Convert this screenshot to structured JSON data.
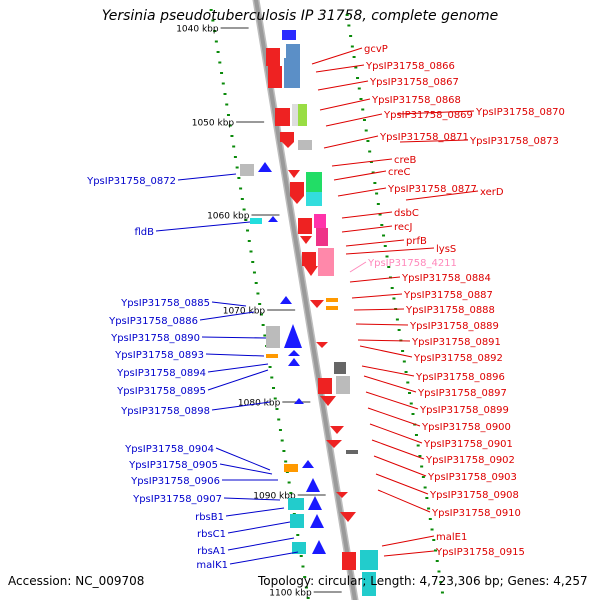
{
  "title": "Yersinia pseudotuberculosis IP 31758, complete genome",
  "accession_text": "Accession: NC_009708",
  "topology_text": "Topology: circular; Length: 4,723,306 bp; Genes: 4,257",
  "colors": {
    "forward_label": "#0000cc",
    "reverse_label": "#dd0000",
    "highlight_label": "#ff88bb",
    "backbone": "#9a9a9a",
    "tick": "#0a8a0a"
  },
  "scale_labels": [
    "1040 kbp",
    "1050 kbp",
    "1060 kbp",
    "1070 kbp",
    "1080 kbp",
    "1090 kbp",
    "1100 kbp"
  ],
  "reverse_strand_genes": [
    {
      "label": "gcvP"
    },
    {
      "label": "YpsIP31758_0866"
    },
    {
      "label": "YpsIP31758_0867"
    },
    {
      "label": "YpsIP31758_0868"
    },
    {
      "label": "YpsIP31758_0869"
    },
    {
      "label": "YpsIP31758_0870"
    },
    {
      "label": "YpsIP31758_0871"
    },
    {
      "label": "YpsIP31758_0873"
    },
    {
      "label": "creB"
    },
    {
      "label": "creC"
    },
    {
      "label": "YpsIP31758_0877"
    },
    {
      "label": "xerD"
    },
    {
      "label": "dsbC"
    },
    {
      "label": "recJ"
    },
    {
      "label": "prfB"
    },
    {
      "label": "lysS"
    },
    {
      "label": "YpsIP31758_4211",
      "highlight": true
    },
    {
      "label": "YpsIP31758_0884"
    },
    {
      "label": "YpsIP31758_0887"
    },
    {
      "label": "YpsIP31758_0888"
    },
    {
      "label": "YpsIP31758_0889"
    },
    {
      "label": "YpsIP31758_0891"
    },
    {
      "label": "YpsIP31758_0892"
    },
    {
      "label": "YpsIP31758_0896"
    },
    {
      "label": "YpsIP31758_0897"
    },
    {
      "label": "YpsIP31758_0899"
    },
    {
      "label": "YpsIP31758_0900"
    },
    {
      "label": "YpsIP31758_0901"
    },
    {
      "label": "YpsIP31758_0902"
    },
    {
      "label": "YpsIP31758_0903"
    },
    {
      "label": "YpsIP31758_0908"
    },
    {
      "label": "YpsIP31758_0910"
    },
    {
      "label": "malE1"
    },
    {
      "label": "YpsIP31758_0915"
    }
  ],
  "forward_strand_genes": [
    {
      "label": "YpsIP31758_0872"
    },
    {
      "label": "fldB"
    },
    {
      "label": "YpsIP31758_0885"
    },
    {
      "label": "YpsIP31758_0886"
    },
    {
      "label": "YpsIP31758_0890"
    },
    {
      "label": "YpsIP31758_0893"
    },
    {
      "label": "YpsIP31758_0894"
    },
    {
      "label": "YpsIP31758_0895"
    },
    {
      "label": "YpsIP31758_0898"
    },
    {
      "label": "YpsIP31758_0904"
    },
    {
      "label": "YpsIP31758_0905"
    },
    {
      "label": "YpsIP31758_0906"
    },
    {
      "label": "YpsIP31758_0907"
    },
    {
      "label": "rbsB1"
    },
    {
      "label": "rbsC1"
    },
    {
      "label": "rbsA1"
    },
    {
      "label": "malK1"
    }
  ]
}
